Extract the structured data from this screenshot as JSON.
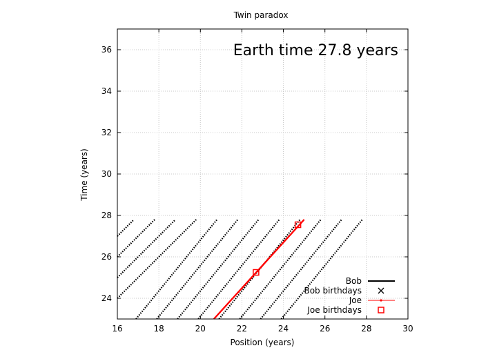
{
  "chart_data": {
    "type": "line",
    "title": "Twin paradox",
    "xlabel": "Position (years)",
    "ylabel": "Time (years)",
    "xlim": [
      16,
      30
    ],
    "ylim": [
      23,
      37
    ],
    "x_ticks": [
      "16",
      "18",
      "20",
      "22",
      "24",
      "26",
      "28",
      "30"
    ],
    "y_ticks": [
      "24",
      "26",
      "28",
      "30",
      "32",
      "34",
      "36"
    ],
    "grid": true,
    "legend_position": "bottom-right",
    "annotation": "Earth time 27.8 years",
    "series": [
      {
        "name": "Bob",
        "color": "#000000",
        "style": "dotted-lines",
        "note_x_range": "worldlines of slope 1 ending at t = 27.8",
        "start_x": [
          16,
          16,
          16,
          16,
          16.9,
          17.9,
          18.9,
          19.9,
          20.9,
          21.9,
          22.9,
          23.9
        ],
        "start_y": [
          27.0,
          26.0,
          25.0,
          24.0,
          23,
          23,
          23,
          23,
          23,
          23,
          23,
          23
        ],
        "end_x": [
          16.8,
          17.8,
          18.8,
          19.8,
          20.8,
          21.8,
          22.8,
          23.8,
          24.8,
          25.8,
          26.8,
          27.8
        ],
        "end_y": [
          27.8,
          27.8,
          27.8,
          27.8,
          27.8,
          27.8,
          27.8,
          27.8,
          27.8,
          27.8,
          27.8,
          27.8
        ]
      },
      {
        "name": "Bob birthdays",
        "marker": "x",
        "color": "#000000",
        "x": [],
        "y": []
      },
      {
        "name": "Joe",
        "color": "#ff0000",
        "x": [
          20.65,
          25.0
        ],
        "y": [
          23.0,
          27.8
        ]
      },
      {
        "name": "Joe birthdays",
        "marker": "square",
        "color": "#ff0000",
        "x": [
          22.68,
          24.7
        ],
        "y": [
          25.25,
          27.55
        ]
      }
    ]
  }
}
